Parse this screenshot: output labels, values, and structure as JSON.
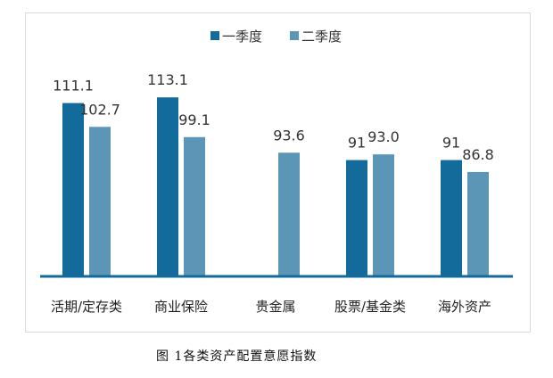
{
  "chart_data": {
    "type": "bar",
    "title": "",
    "caption": "图 1各类资产配置意愿指数",
    "categories": [
      "活期/定存类",
      "商业保险",
      "贵金属",
      "股票/基金类",
      "海外资产"
    ],
    "series": [
      {
        "name": "一季度",
        "color": "#136b9c",
        "values": [
          111.1,
          113.1,
          null,
          91,
          91
        ],
        "labels": [
          "111.1",
          "113.1",
          "",
          "91",
          "91"
        ]
      },
      {
        "name": "二季度",
        "color": "#5b96b6",
        "values": [
          102.7,
          99.1,
          93.6,
          93.0,
          86.8
        ],
        "labels": [
          "102.7",
          "99.1",
          "93.6",
          "93.0",
          "86.8"
        ]
      }
    ],
    "ylim": [
      50,
      116
    ],
    "grid": false,
    "legend": "top-center",
    "axis_color": "#136b9c"
  }
}
